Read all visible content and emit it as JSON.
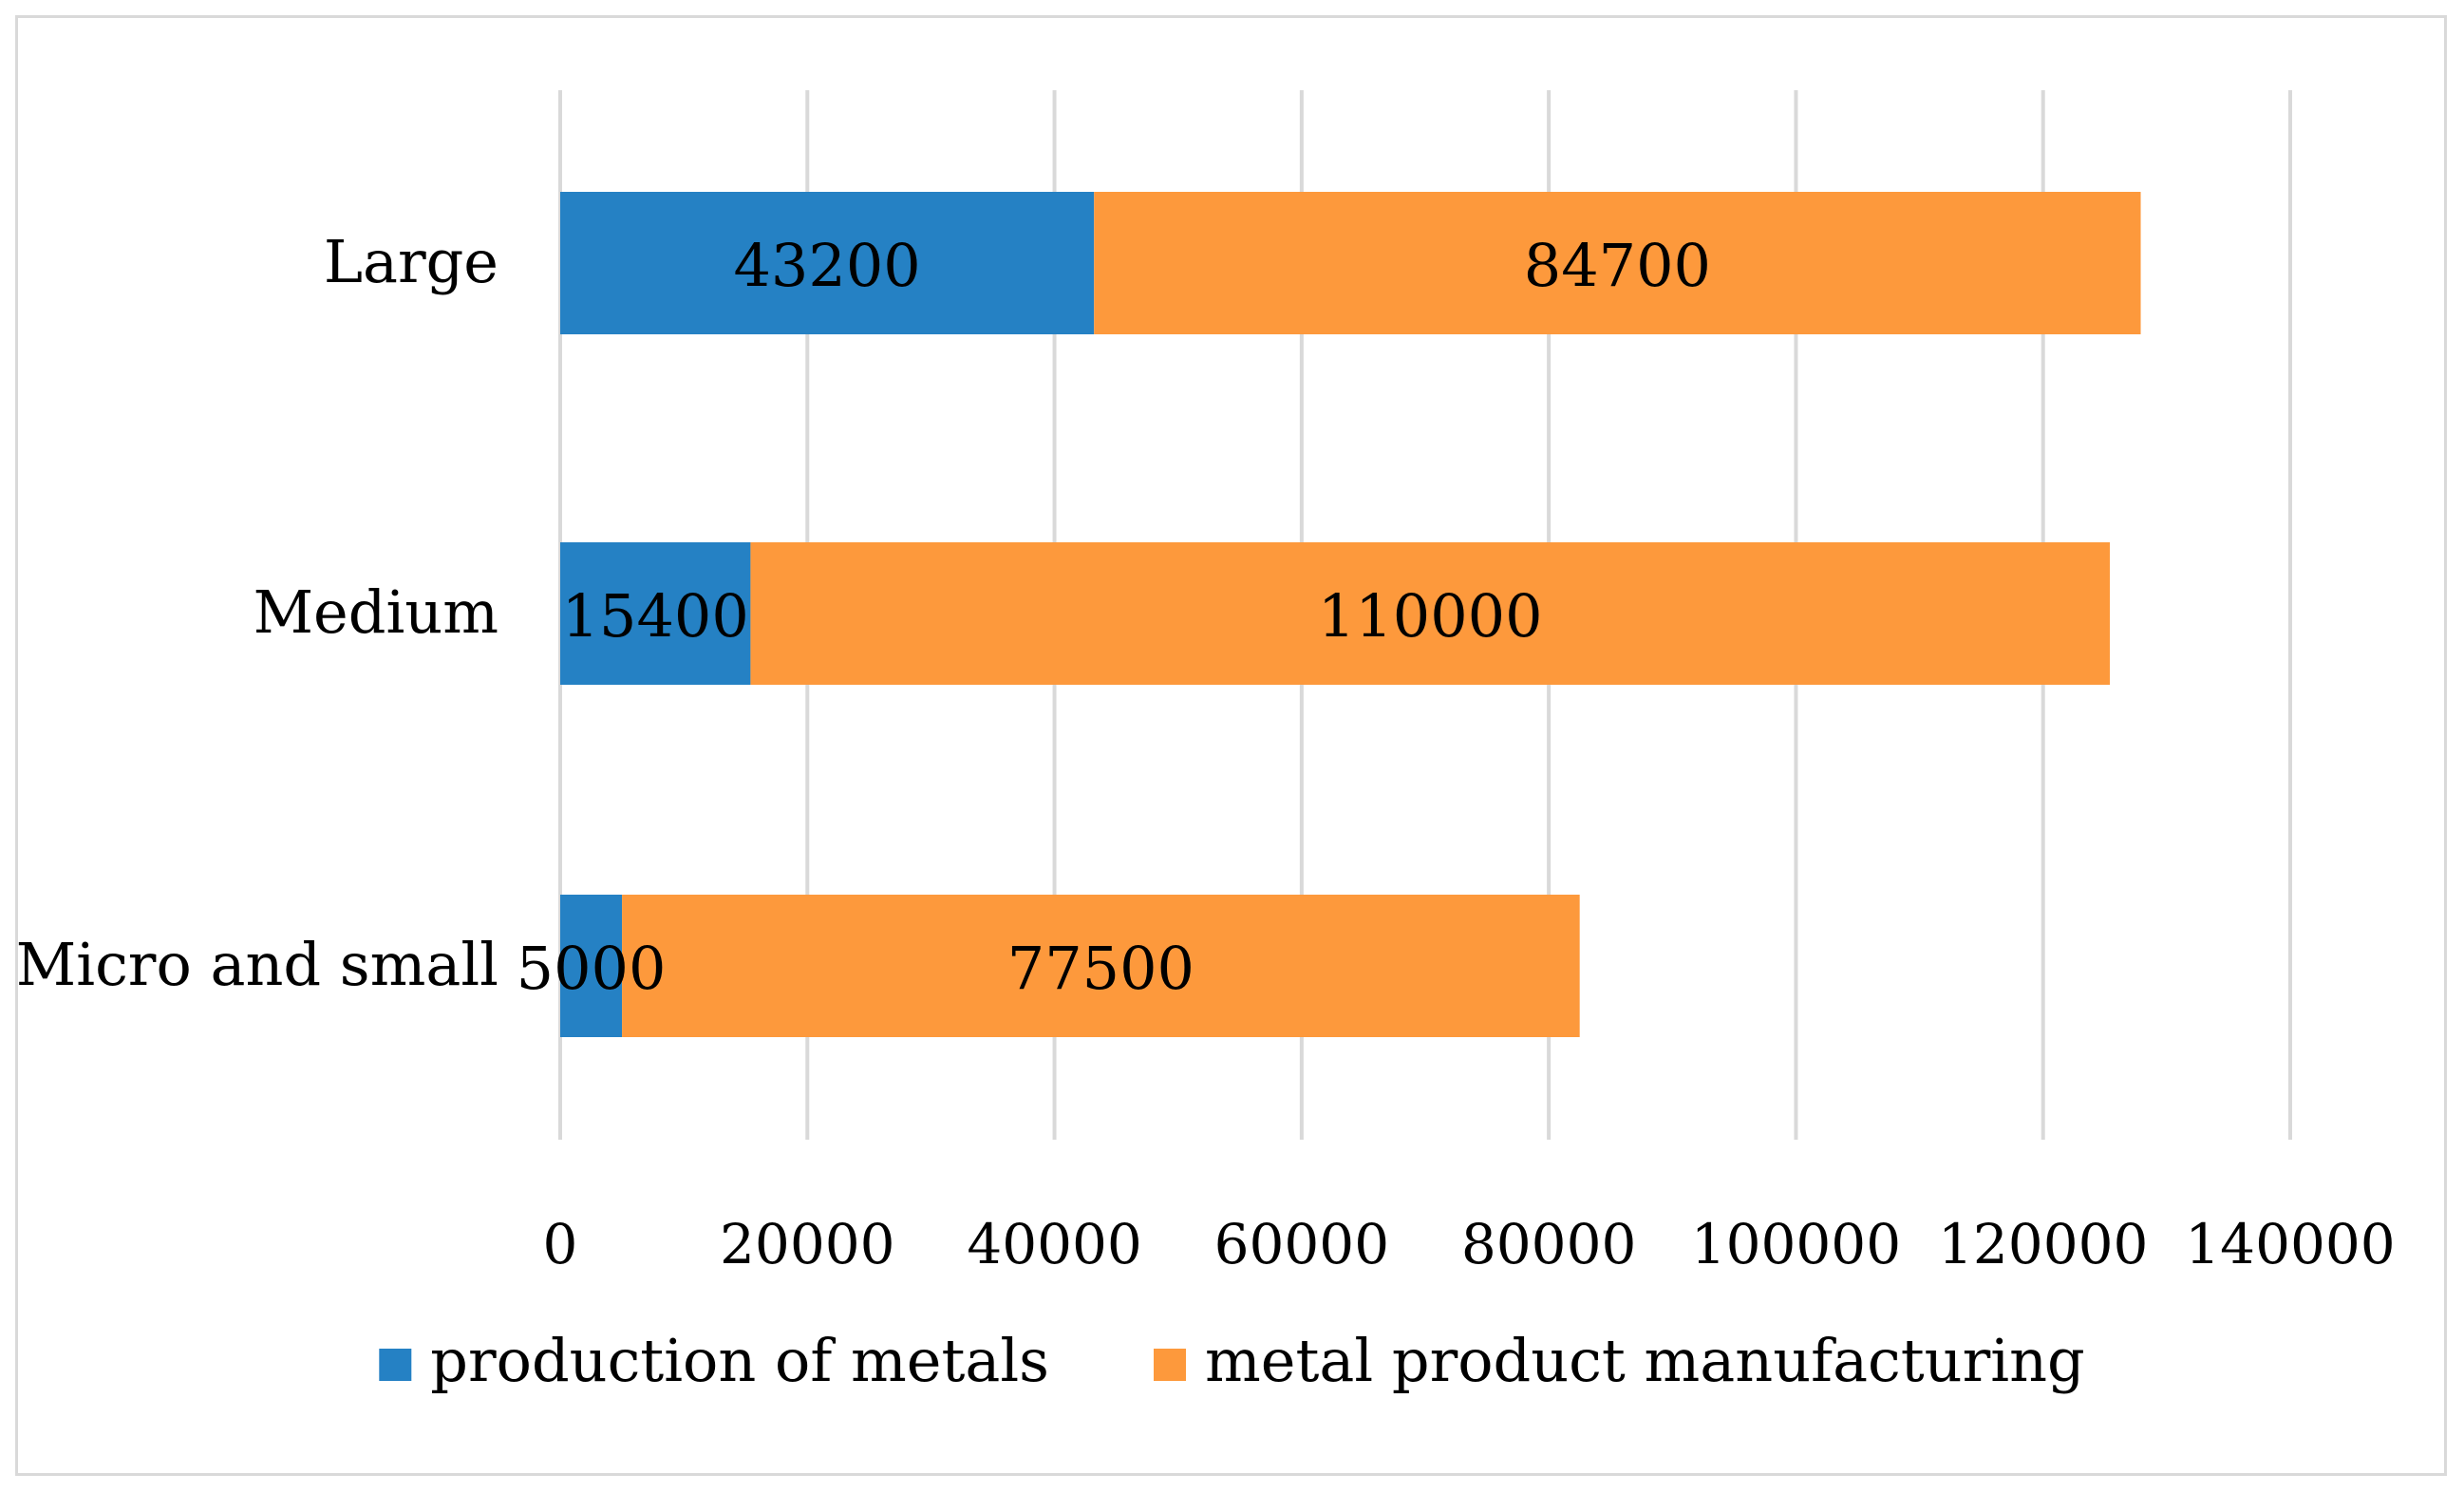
{
  "chart_data": {
    "type": "bar",
    "orientation": "horizontal",
    "stacked": true,
    "categories": [
      "Large",
      "Medium",
      "Micro and small"
    ],
    "series": [
      {
        "name": "production of metals",
        "color": "#2581c4",
        "values": [
          43200,
          15400,
          5000
        ]
      },
      {
        "name": "metal product manufacturing",
        "color": "#fd993c",
        "values": [
          84700,
          110000,
          77500
        ]
      }
    ],
    "xlim": [
      0,
      140000
    ],
    "x_ticks": [
      0,
      20000,
      40000,
      60000,
      80000,
      100000,
      120000,
      140000
    ],
    "title": "",
    "xlabel": "",
    "ylabel": "",
    "grid": "vertical",
    "legend_position": "bottom",
    "data_labels": true
  }
}
